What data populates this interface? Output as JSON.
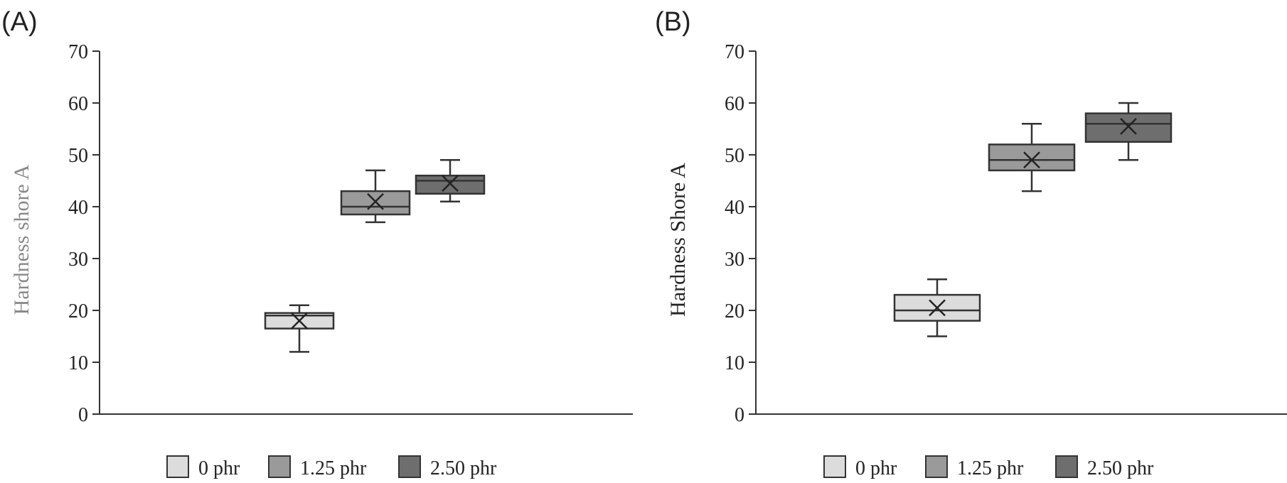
{
  "chart_data": [
    {
      "type": "box",
      "panel_label": "(A)",
      "ylabel": "Hardness shore A",
      "ylim": [
        0,
        70
      ],
      "yticks": [
        "0",
        "10",
        "20",
        "30",
        "40",
        "50",
        "60",
        "70"
      ],
      "legend_position": "bottom",
      "series": [
        {
          "name": "0 phr",
          "color": "#dcdcdc",
          "whisker_low": 12,
          "q1": 16.5,
          "median": 19,
          "q3": 19.5,
          "whisker_high": 21,
          "mean": 18
        },
        {
          "name": "1.25 phr",
          "color": "#9a9a9a",
          "whisker_low": 37,
          "q1": 38.5,
          "median": 40,
          "q3": 43,
          "whisker_high": 47,
          "mean": 41
        },
        {
          "name": "2.50 phr",
          "color": "#6e6e6e",
          "whisker_low": 41,
          "q1": 42.5,
          "median": 45,
          "q3": 46,
          "whisker_high": 49,
          "mean": 44.5
        }
      ]
    },
    {
      "type": "box",
      "panel_label": "(B)",
      "ylabel": "Hardness Shore A",
      "ylim": [
        0,
        70
      ],
      "yticks": [
        "0",
        "10",
        "20",
        "30",
        "40",
        "50",
        "60",
        "70"
      ],
      "legend_position": "bottom",
      "series": [
        {
          "name": "0 phr",
          "color": "#dcdcdc",
          "whisker_low": 15,
          "q1": 18,
          "median": 20,
          "q3": 23,
          "whisker_high": 26,
          "mean": 20.5
        },
        {
          "name": "1.25 phr",
          "color": "#9a9a9a",
          "whisker_low": 43,
          "q1": 47,
          "median": 49,
          "q3": 52,
          "whisker_high": 56,
          "mean": 49
        },
        {
          "name": "2.50 phr",
          "color": "#6e6e6e",
          "whisker_low": 49,
          "q1": 52.5,
          "median": 56,
          "q3": 58,
          "whisker_high": 60,
          "mean": 55.5
        }
      ]
    }
  ],
  "colors": {
    "axis": "#333333",
    "box_stroke": "#333333",
    "ylabel_A": "#888888",
    "ylabel_B": "#222222"
  }
}
